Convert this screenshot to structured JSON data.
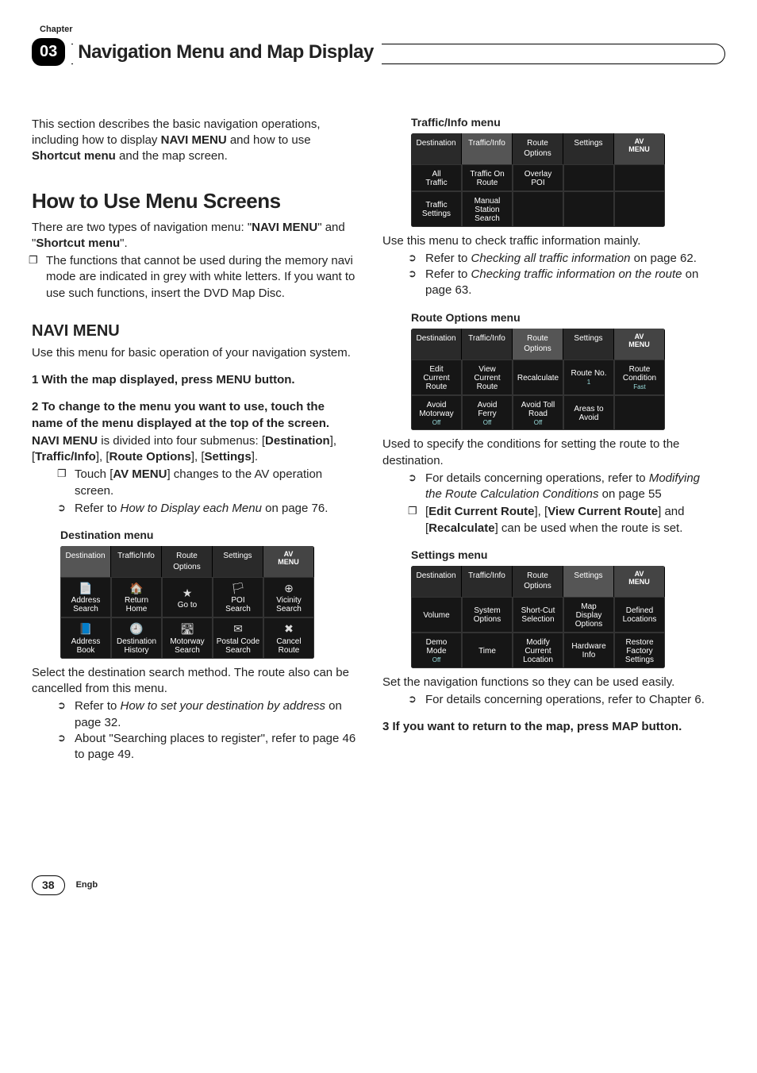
{
  "chapter_label": "Chapter",
  "chapter_num": "03",
  "header_title": "Navigation Menu and Map Display",
  "page_num": "38",
  "engb": "Engb",
  "left": {
    "intro": "This section describes the basic navigation operations, including how to display ",
    "intro_b1": "NAVI MENU",
    "intro_mid": " and how to use ",
    "intro_b2": "Shortcut menu",
    "intro_end": " and the map screen.",
    "h1": "How to Use Menu Screens",
    "p1a": "There are two types of navigation menu: \"",
    "p1b": "NAVI MENU",
    "p1c": "\" and \"",
    "p1d": "Shortcut menu",
    "p1e": "\".",
    "bullet1": "The functions that cannot be used during the memory navi mode are indicated in grey with white letters. If you want to use such functions, insert the DVD Map Disc.",
    "h2": "NAVI MENU",
    "p2": "Use this menu for basic operation of your navigation system.",
    "step1": "1   With the map displayed, press MENU button.",
    "step2": "2   To change to the menu you want to use, touch the name of the menu displayed at the top of the screen.",
    "p3a": "NAVI MENU",
    "p3b": " is divided into four submenus: [",
    "p3c": "Destination",
    "p3d": "], [",
    "p3e": "Traffic/Info",
    "p3f": "], [",
    "p3g": "Route Options",
    "p3h": "], [",
    "p3i": "Settings",
    "p3j": "].",
    "sq1a": "Touch [",
    "sq1b": "AV MENU",
    "sq1c": "] changes to the AV operation screen.",
    "ar1a": "Refer to ",
    "ar1b": "How to Display each Menu",
    "ar1c": " on page 76.",
    "cap1": "Destination menu",
    "p4": "Select the destination search method. The route also can be cancelled from this menu.",
    "ar2a": "Refer to ",
    "ar2b": "How to set your destination by address",
    "ar2c": " on page 32.",
    "ar3": "About \"Searching places to register\", refer to page 46 to page 49."
  },
  "right": {
    "cap2": "Traffic/Info menu",
    "p5": "Use this menu to check traffic information mainly.",
    "ar4a": "Refer to ",
    "ar4b": "Checking all traffic information",
    "ar4c": " on page 62.",
    "ar5a": "Refer to ",
    "ar5b": "Checking traffic information on the route",
    "ar5c": " on page 63.",
    "cap3": "Route Options menu",
    "p6": "Used to specify the conditions for setting the route to the destination.",
    "ar6a": "For details concerning operations, refer to ",
    "ar6b": "Modifying the Route Calculation Conditions",
    "ar6c": " on page 55",
    "sq2a": "[",
    "sq2b": "Edit Current Route",
    "sq2c": "], [",
    "sq2d": "View Current Route",
    "sq2e": "] and [",
    "sq2f": "Recalculate",
    "sq2g": "] can be used when the route is set.",
    "cap4": "Settings menu",
    "p7": "Set the navigation functions so they can be used easily.",
    "ar7": "For details concerning operations, refer to Chapter 6.",
    "step3": "3   If you want to return to the map, press MAP button."
  },
  "shot_dest": {
    "tabs": [
      "Destination",
      "Traffic/Info",
      "Route Options",
      "Settings",
      "AV\nMENU"
    ],
    "active": 0,
    "row1": [
      {
        "ic": "📄",
        "t": "Address\nSearch"
      },
      {
        "ic": "🏠",
        "t": "Return\nHome"
      },
      {
        "ic": "★",
        "t": "Go to"
      },
      {
        "ic": "🏳",
        "t": "POI\nSearch"
      },
      {
        "ic": "⊕",
        "t": "Vicinity\nSearch"
      }
    ],
    "row2": [
      {
        "ic": "📘",
        "t": "Address\nBook"
      },
      {
        "ic": "🕘",
        "t": "Destination\nHistory"
      },
      {
        "ic": "🛣",
        "t": "Motorway\nSearch"
      },
      {
        "ic": "✉",
        "t": "Postal Code\nSearch"
      },
      {
        "ic": "✖",
        "t": "Cancel\nRoute"
      }
    ]
  },
  "shot_traffic": {
    "tabs": [
      "Destination",
      "Traffic/Info",
      "Route Options",
      "Settings",
      "AV\nMENU"
    ],
    "active": 1,
    "row1": [
      {
        "t": "All\nTraffic"
      },
      {
        "t": "Traffic On\nRoute"
      },
      {
        "t": "Overlay\nPOI"
      },
      {
        "t": ""
      },
      {
        "t": ""
      }
    ],
    "row2": [
      {
        "t": "Traffic\nSettings"
      },
      {
        "t": "Manual\nStation\nSearch"
      },
      {
        "t": ""
      },
      {
        "t": ""
      },
      {
        "t": ""
      }
    ]
  },
  "shot_route": {
    "tabs": [
      "Destination",
      "Traffic/Info",
      "Route Options",
      "Settings",
      "AV\nMENU"
    ],
    "active": 2,
    "row1": [
      {
        "t": "Edit\nCurrent\nRoute"
      },
      {
        "t": "View\nCurrent\nRoute"
      },
      {
        "t": "Recalculate"
      },
      {
        "t": "Route No.",
        "s": "1"
      },
      {
        "t": "Route\nCondition",
        "s": "Fast"
      }
    ],
    "row2": [
      {
        "t": "Avoid\nMotorway",
        "s": "Off"
      },
      {
        "t": "Avoid\nFerry",
        "s": "Off"
      },
      {
        "t": "Avoid Toll\nRoad",
        "s": "Off"
      },
      {
        "t": "Areas to\nAvoid"
      },
      {
        "t": ""
      }
    ]
  },
  "shot_settings": {
    "tabs": [
      "Destination",
      "Traffic/Info",
      "Route Options",
      "Settings",
      "AV\nMENU"
    ],
    "active": 3,
    "row1": [
      {
        "t": "Volume"
      },
      {
        "t": "System\nOptions"
      },
      {
        "t": "Short-Cut\nSelection"
      },
      {
        "t": "Map\nDisplay\nOptions"
      },
      {
        "t": "Defined\nLocations"
      }
    ],
    "row2": [
      {
        "t": "Demo\nMode",
        "s": "Off"
      },
      {
        "t": "Time"
      },
      {
        "t": "Modify\nCurrent\nLocation"
      },
      {
        "t": "Hardware\nInfo"
      },
      {
        "t": "Restore\nFactory\nSettings"
      }
    ]
  }
}
